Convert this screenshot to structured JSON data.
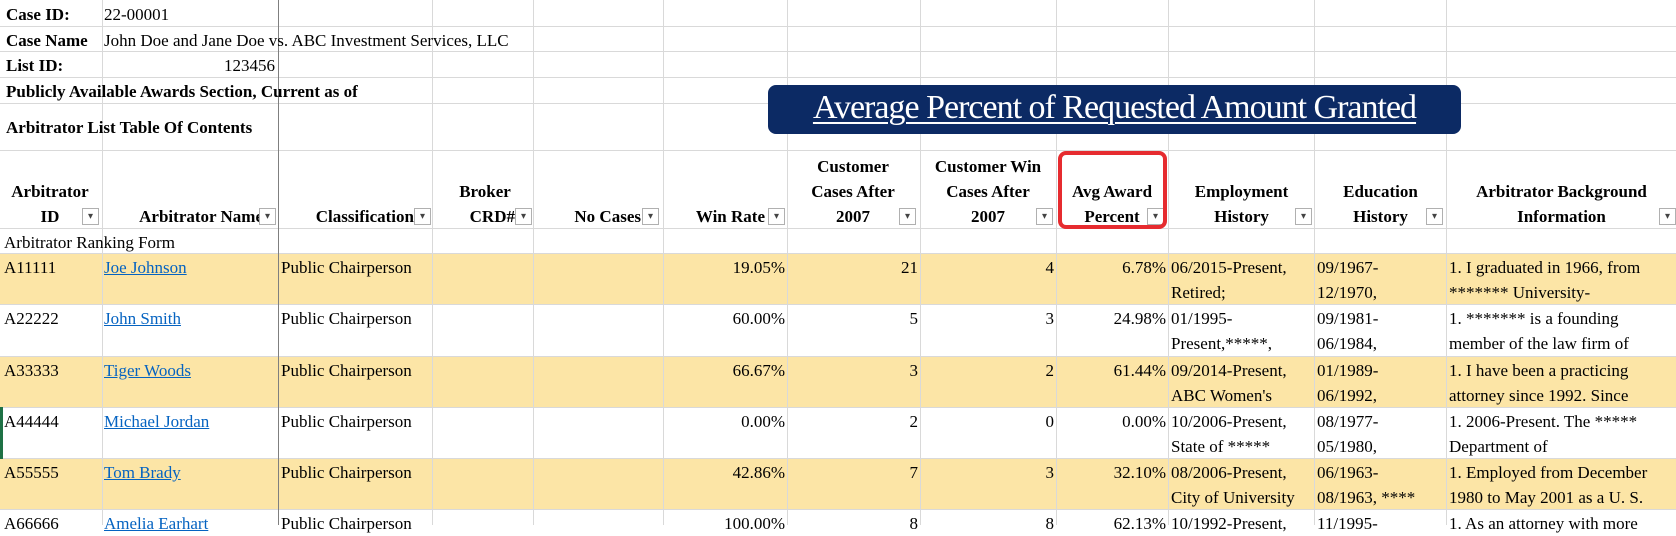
{
  "info": {
    "case_id_label": "Case ID:",
    "case_id_value": "22-00001",
    "case_name_label": "Case Name",
    "case_name_value": "John Doe and Jane Doe vs. ABC Investment Services, LLC",
    "list_id_label": "List ID:",
    "list_id_value": "123456",
    "awards_section": "Publicly Available Awards Section, Current as of",
    "toc": "Arbitrator List Table Of Contents"
  },
  "banner": {
    "title": "Average Percent of Requested Amount Granted"
  },
  "headers": {
    "arb_id_1": "Arbitrator",
    "arb_id_2": "ID",
    "arb_name": "Arbitrator Name",
    "classification": "Classification",
    "broker_1": "Broker",
    "broker_2": "CRD#",
    "no_cases": "No Cases",
    "win_rate": "Win Rate",
    "cust_after_1": "Customer",
    "cust_after_2": "Cases After",
    "cust_after_3": "2007",
    "cust_win_1": "Customer Win",
    "cust_win_2": "Cases After",
    "cust_win_3": "2007",
    "avg_award_1": "Avg Award",
    "avg_award_2": "Percent",
    "employment_1": "Employment",
    "employment_2": "History",
    "education_1": "Education",
    "education_2": "History",
    "background_1": "Arbitrator Background",
    "background_2": "Information"
  },
  "ranking_form": "Arbitrator Ranking Form",
  "rows": [
    {
      "id": "A11111",
      "name": "Joe Johnson",
      "classification": "Public Chairperson",
      "win_rate": "19.05%",
      "cust_after": "21",
      "cust_win": "4",
      "avg_award": "6.78%",
      "emp1": "06/2015-Present,",
      "emp2": "Retired;",
      "edu1": "09/1967-",
      "edu2": "12/1970,",
      "bg1": "1. I graduated in 1966, from",
      "bg2": "******* University-"
    },
    {
      "id": "A22222",
      "name": "John Smith",
      "classification": "Public Chairperson",
      "win_rate": "60.00%",
      "cust_after": "5",
      "cust_win": "3",
      "avg_award": "24.98%",
      "emp1": "01/1995-",
      "emp2": "Present,*****,",
      "edu1": "09/1981-",
      "edu2": "06/1984,",
      "bg1": "1. ******* is a founding",
      "bg2": "member of the law firm of"
    },
    {
      "id": "A33333",
      "name": "Tiger Woods",
      "classification": "Public Chairperson",
      "win_rate": "66.67%",
      "cust_after": "3",
      "cust_win": "2",
      "avg_award": "61.44%",
      "emp1": "09/2014-Present,",
      "emp2": "ABC Women's",
      "edu1": "01/1989-",
      "edu2": "06/1992,",
      "bg1": "1. I have been a practicing",
      "bg2": "attorney since 1992. Since"
    },
    {
      "id": "A44444",
      "name": "Michael Jordan",
      "classification": "Public Chairperson",
      "win_rate": "0.00%",
      "cust_after": "2",
      "cust_win": "0",
      "avg_award": "0.00%",
      "emp1": "10/2006-Present,",
      "emp2": "State of *****",
      "edu1": "08/1977-",
      "edu2": "05/1980,",
      "bg1": "1. 2006-Present. The *****",
      "bg2": "Department of"
    },
    {
      "id": "A55555",
      "name": "Tom Brady",
      "classification": "Public Chairperson",
      "win_rate": "42.86%",
      "cust_after": "7",
      "cust_win": "3",
      "avg_award": "32.10%",
      "emp1": "08/2006-Present,",
      "emp2": "City of University",
      "edu1": "06/1963-",
      "edu2": "08/1963, ****",
      "bg1": "1. Employed from December",
      "bg2": "1980 to May 2001 as a U. S."
    },
    {
      "id": "A66666",
      "name": "Amelia Earhart",
      "classification": "Public Chairperson",
      "win_rate": "100.00%",
      "cust_after": "8",
      "cust_win": "8",
      "avg_award": "62.13%",
      "emp1": "10/1992-Present,",
      "emp2": "",
      "edu1": "11/1995-",
      "edu2": "",
      "bg1": "1. As an attorney with more",
      "bg2": ""
    }
  ],
  "colors": {
    "band": "#fce5a6",
    "banner_bg": "#0c2a64",
    "highlight": "#e62b2f",
    "link": "#0563c1"
  },
  "icons": {
    "filter": "dropdown-arrow"
  }
}
